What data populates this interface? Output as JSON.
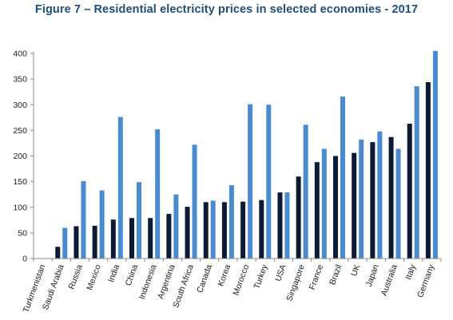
{
  "chart_data": {
    "type": "bar",
    "title": "Figure 7 – Residential electricity prices in selected economies - 2017",
    "xlabel": "",
    "ylabel": "",
    "ylim": [
      0,
      400
    ],
    "yticks": [
      0,
      50,
      100,
      150,
      200,
      250,
      300,
      350,
      400
    ],
    "grid": false,
    "legend": "none",
    "categories": [
      "Turkmenistan",
      "Saudi Arabia",
      "Russia",
      "Mexico",
      "India",
      "China",
      "Indonesia",
      "Argentina",
      "South Africa",
      "Canada",
      "Korea",
      "Morocco",
      "Turkey",
      "USA",
      "Singapore",
      "France",
      "Brazil",
      "UK",
      "Japan",
      "Australia",
      "Italy",
      "Germany"
    ],
    "series": [
      {
        "color": "#0c1b33",
        "values": [
          0,
          23,
          63,
          64,
          76,
          79,
          79,
          87,
          101,
          110,
          110,
          111,
          114,
          129,
          160,
          188,
          200,
          206,
          227,
          237,
          263,
          344
        ]
      },
      {
        "color": "#4a8bd0",
        "values": [
          0,
          60,
          151,
          133,
          276,
          149,
          252,
          125,
          222,
          113,
          143,
          301,
          300,
          129,
          261,
          214,
          316,
          232,
          248,
          214,
          336,
          405
        ]
      }
    ]
  }
}
